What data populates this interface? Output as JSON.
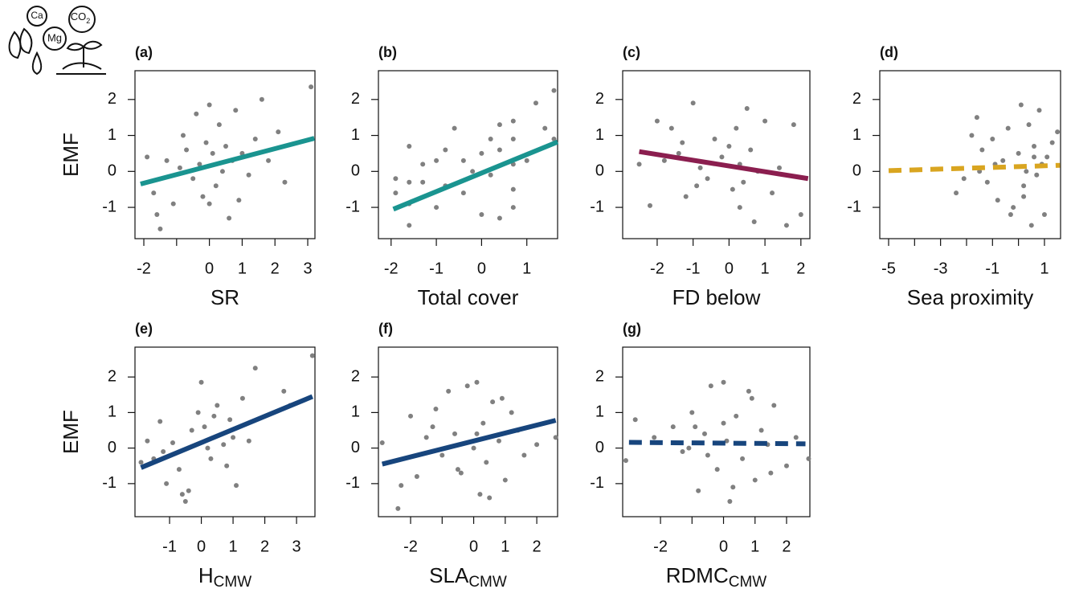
{
  "icon": {
    "labels": [
      "Ca",
      "Mg",
      "CO",
      "2"
    ]
  },
  "chart_data": [
    {
      "type": "scatter",
      "label": "(a)",
      "ylabel": "EMF",
      "xlabel": "SR",
      "color": "#808080",
      "x": [
        -1.9,
        -1.7,
        -1.5,
        -1.3,
        -1.1,
        -0.9,
        -0.7,
        -0.5,
        -0.4,
        -0.3,
        -0.2,
        -0.1,
        0,
        0.1,
        0.2,
        0.3,
        0.4,
        0.5,
        0.6,
        0.7,
        0.8,
        1.0,
        1.2,
        1.4,
        1.6,
        1.8,
        2.1,
        2.3,
        -1.6,
        0.0,
        -0.8,
        0.9,
        3.1
      ],
      "y": [
        0.4,
        -0.6,
        -1.6,
        0.3,
        -0.9,
        0.1,
        0.6,
        -0.2,
        1.6,
        0.2,
        -0.7,
        0.8,
        1.85,
        0.5,
        -0.4,
        1.3,
        0.0,
        0.7,
        -1.3,
        0.3,
        1.7,
        0.5,
        -0.1,
        0.9,
        2.0,
        0.3,
        1.1,
        -0.3,
        -1.2,
        -0.9,
        1.0,
        -0.8,
        2.35
      ],
      "fit": {
        "x": [
          -2.1,
          3.2
        ],
        "y": [
          -0.35,
          0.92
        ],
        "color": "#1a9490",
        "dashed": false
      },
      "xlim": [
        -2.27,
        3.22
      ],
      "ylim": [
        -1.87,
        2.8
      ],
      "xticks": [
        -2,
        0,
        1,
        2,
        3
      ],
      "xticks_minor": [
        -1
      ],
      "yticks": [
        -1,
        0,
        1,
        2
      ]
    },
    {
      "type": "scatter",
      "label": "(b)",
      "xlabel": "Total cover",
      "color": "#808080",
      "x": [
        -1.9,
        -1.9,
        -1.6,
        -1.6,
        -1.6,
        -1.6,
        -1.3,
        -1.3,
        -1,
        -1,
        -0.8,
        -0.8,
        -0.6,
        -0.4,
        -0.4,
        -0.2,
        0,
        0,
        0.2,
        0.2,
        0.4,
        0.4,
        0.4,
        0.7,
        0.7,
        0.7,
        0.7,
        0.7,
        1,
        1.2,
        1.4,
        1.6,
        1.6
      ],
      "y": [
        -0.2,
        -0.6,
        -1.5,
        -0.9,
        0.7,
        -0.3,
        -0.3,
        0.2,
        -1.0,
        0.3,
        0.6,
        -0.4,
        1.2,
        0.3,
        -0.6,
        0.0,
        0.5,
        -1.2,
        0.9,
        -0.1,
        0.6,
        1.3,
        -1.3,
        1.4,
        0.9,
        0.2,
        -0.5,
        -1.0,
        0.3,
        1.9,
        1.2,
        2.25,
        0.9
      ],
      "fit": {
        "x": [
          -1.95,
          1.68
        ],
        "y": [
          -1.05,
          0.82
        ],
        "color": "#1a9490",
        "dashed": false
      },
      "xlim": [
        -2.28,
        1.68
      ],
      "ylim": [
        -1.87,
        2.8
      ],
      "xticks": [
        -2,
        -1,
        0,
        1
      ],
      "xticks_minor": [],
      "yticks": [
        -1,
        0,
        1,
        2
      ]
    },
    {
      "type": "scatter",
      "label": "(c)",
      "xlabel": "FD below",
      "color": "#808080",
      "x": [
        -2.5,
        -2.2,
        -2,
        -1.8,
        -1.6,
        -1.4,
        -1.2,
        -1,
        -0.8,
        -0.6,
        -0.4,
        -0.2,
        0,
        0.1,
        0.2,
        0.3,
        0.4,
        0.5,
        0.6,
        0.7,
        0.8,
        1,
        1.2,
        1.4,
        1.6,
        1.8,
        2,
        -0.9,
        0.3,
        -1.3
      ],
      "y": [
        0.2,
        -0.95,
        1.4,
        0.3,
        1.2,
        0.5,
        -0.7,
        1.9,
        0.1,
        -0.2,
        0.9,
        0.4,
        0.7,
        -0.5,
        1.2,
        0.2,
        -0.3,
        1.75,
        0.6,
        -1.4,
        0.0,
        1.4,
        -0.6,
        0.1,
        -1.5,
        1.3,
        -1.2,
        -0.4,
        -1.0,
        0.8
      ],
      "fit": {
        "x": [
          -2.5,
          2.2
        ],
        "y": [
          0.55,
          -0.2
        ],
        "color": "#8b1e4f",
        "dashed": false
      },
      "xlim": [
        -2.96,
        2.25
      ],
      "ylim": [
        -1.87,
        2.8
      ],
      "xticks": [
        -2,
        -1,
        0,
        1,
        2
      ],
      "xticks_minor": [],
      "yticks": [
        -1,
        0,
        1,
        2
      ]
    },
    {
      "type": "scatter",
      "label": "(d)",
      "xlabel": "Sea proximity",
      "color": "#808080",
      "x": [
        -2.4,
        -2.1,
        -1.8,
        -1.6,
        -1.4,
        -1.2,
        -1,
        -0.8,
        -0.6,
        -0.4,
        -0.2,
        0,
        0.1,
        0.2,
        0.3,
        0.4,
        0.5,
        0.6,
        0.7,
        0.8,
        0.9,
        1,
        1.1,
        1.3,
        1.5,
        -0.3,
        0.2,
        -1.5,
        0.6,
        -0.9
      ],
      "y": [
        -0.6,
        -0.2,
        1.0,
        1.5,
        0.6,
        -0.3,
        0.9,
        -0.8,
        0.3,
        1.2,
        -1.0,
        0.5,
        1.85,
        -0.4,
        0.0,
        1.3,
        -1.5,
        0.7,
        -0.1,
        1.7,
        0.2,
        -1.2,
        0.4,
        0.8,
        1.1,
        -1.2,
        -0.7,
        0.0,
        0.4,
        0.2
      ],
      "fit": {
        "x": [
          -5,
          1.6
        ],
        "y": [
          0.02,
          0.17
        ],
        "color": "#d9a520",
        "dashed": true
      },
      "xlim": [
        -5.34,
        1.62
      ],
      "ylim": [
        -1.87,
        2.8
      ],
      "xticks": [
        -5,
        -3,
        -1,
        1
      ],
      "xticks_minor": [
        -4,
        -2,
        0
      ],
      "yticks": [
        -1,
        0,
        1,
        2
      ]
    },
    {
      "type": "scatter",
      "label": "(e)",
      "ylabel": "EMF",
      "xlabel": "H",
      "xlabel_sub": "CMW",
      "color": "#808080",
      "x": [
        -1.9,
        -1.7,
        -1.5,
        -1.3,
        -1.1,
        -0.9,
        -0.7,
        -0.5,
        -0.3,
        -0.1,
        0,
        0.1,
        0.3,
        0.5,
        0.7,
        0.9,
        1.1,
        1.3,
        1.5,
        1.7,
        2.6,
        3.5,
        -0.6,
        0.2,
        -1.2,
        0.8,
        1.0,
        -0.4,
        0.4,
        2.8
      ],
      "y": [
        -0.4,
        0.2,
        -0.3,
        0.75,
        -1.0,
        0.15,
        -0.6,
        -1.5,
        0.5,
        1.0,
        1.85,
        0.6,
        -0.3,
        1.2,
        0.1,
        0.8,
        -1.05,
        1.4,
        0.2,
        2.25,
        1.6,
        2.6,
        -1.3,
        0.0,
        -0.1,
        -0.5,
        0.3,
        -1.2,
        0.9,
        1.2
      ],
      "fit": {
        "x": [
          -1.9,
          3.5
        ],
        "y": [
          -0.55,
          1.45
        ],
        "color": "#17457d",
        "dashed": false
      },
      "xlim": [
        -2.09,
        3.58
      ],
      "ylim": [
        -1.93,
        2.84
      ],
      "xticks": [
        -1,
        0,
        1,
        2,
        3
      ],
      "xticks_minor": [],
      "yticks": [
        -1,
        0,
        1,
        2
      ]
    },
    {
      "type": "scatter",
      "label": "(f)",
      "xlabel": "SLA",
      "xlabel_sub": "CMW",
      "color": "#808080",
      "x": [
        -2.9,
        -2.3,
        -2,
        -1.8,
        -1.5,
        -1.2,
        -1,
        -0.8,
        -0.6,
        -0.4,
        -0.2,
        0,
        0.1,
        0.2,
        0.3,
        0.4,
        0.6,
        0.8,
        1,
        1.2,
        1.4,
        1.6,
        2,
        2.6,
        -0.5,
        0.5,
        -1.3,
        0.9,
        -2.4,
        0.1
      ],
      "y": [
        0.15,
        -1.05,
        0.9,
        -0.8,
        0.3,
        1.1,
        -0.2,
        1.6,
        0.4,
        -0.7,
        1.75,
        0.0,
        1.85,
        -1.3,
        0.7,
        -0.4,
        1.3,
        0.2,
        -0.9,
        1.0,
        0.5,
        -0.2,
        0.1,
        0.3,
        -0.6,
        -1.4,
        0.6,
        1.4,
        -1.7,
        0.4
      ],
      "fit": {
        "x": [
          -2.9,
          2.6
        ],
        "y": [
          -0.45,
          0.78
        ],
        "color": "#17457d",
        "dashed": false
      },
      "xlim": [
        -3.02,
        2.66
      ],
      "ylim": [
        -1.93,
        2.84
      ],
      "xticks": [
        -2,
        0,
        1,
        2
      ],
      "xticks_minor": [
        -1
      ],
      "yticks": [
        -1,
        0,
        1,
        2
      ]
    },
    {
      "type": "scatter",
      "label": "(g)",
      "xlabel": "RDMC",
      "xlabel_sub": "CMW",
      "color": "#808080",
      "x": [
        -3.1,
        -2.8,
        -2.2,
        -1.6,
        -1.3,
        -1,
        -0.8,
        -0.6,
        -0.4,
        -0.2,
        0,
        0.1,
        0.2,
        0.4,
        0.6,
        0.8,
        1,
        1.2,
        1.4,
        1.6,
        2,
        2.3,
        2.7,
        -0.9,
        0.3,
        -0.5,
        0.9,
        1.5,
        -1.1,
        0.0
      ],
      "y": [
        -0.35,
        0.8,
        0.3,
        0.6,
        -0.1,
        1.0,
        -1.2,
        0.4,
        1.75,
        -0.6,
        1.85,
        0.2,
        -1.5,
        0.9,
        -0.3,
        1.6,
        -0.9,
        0.5,
        0.1,
        1.2,
        -0.5,
        0.3,
        -0.3,
        0.6,
        -1.1,
        -0.2,
        1.4,
        -0.7,
        0.0,
        0.7
      ],
      "fit": {
        "x": [
          -3,
          2.6
        ],
        "y": [
          0.16,
          0.12
        ],
        "color": "#17457d",
        "dashed": true
      },
      "xlim": [
        -3.2,
        2.74
      ],
      "ylim": [
        -1.93,
        2.84
      ],
      "xticks": [
        -2,
        0,
        1,
        2
      ],
      "xticks_minor": [
        -1
      ],
      "yticks": [
        -1,
        0,
        1,
        2
      ]
    }
  ]
}
